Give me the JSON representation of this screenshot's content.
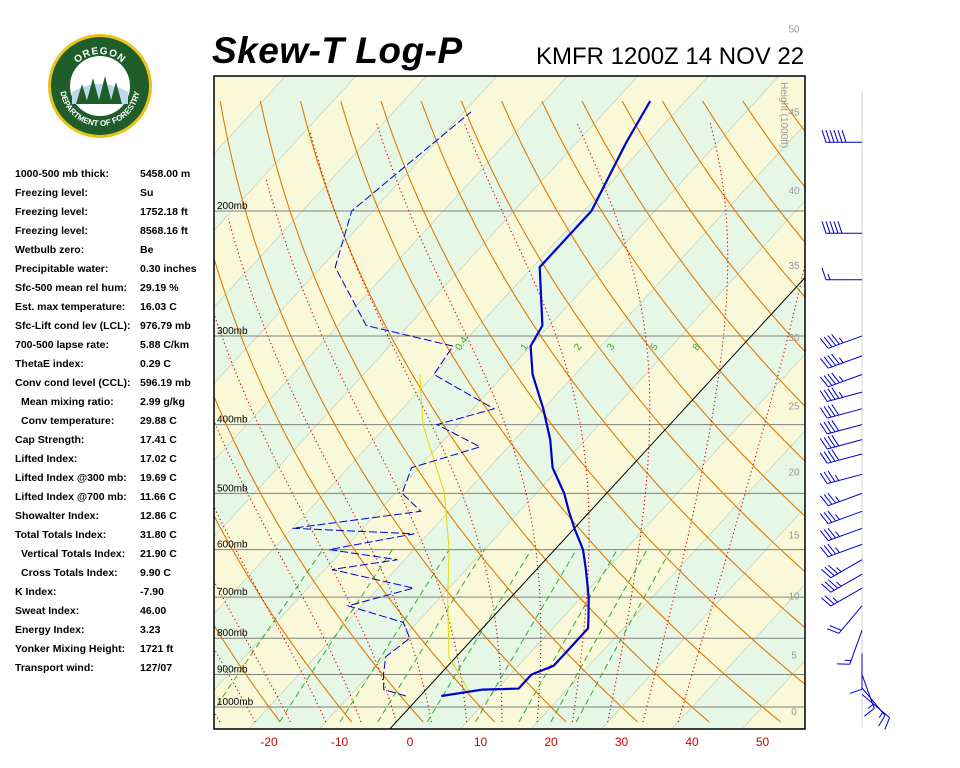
{
  "header": {
    "title": "Skew-T Log-P",
    "station_time": "KMFR 1200Z 14 NOV 22"
  },
  "logo": {
    "top_text": "OREGON",
    "bottom_text": "DEPARTMENT OF FORESTRY"
  },
  "stats": [
    {
      "label": "1000-500 mb thick:",
      "value": "5458.00 m"
    },
    {
      "label": "Freezing level:",
      "value": "Su"
    },
    {
      "label": "Freezing level:",
      "value": "1752.18 ft"
    },
    {
      "label": "Freezing level:",
      "value": "8568.16 ft"
    },
    {
      "label": "Wetbulb zero:",
      "value": "Be"
    },
    {
      "label": "Precipitable water:",
      "value": "0.30 inches"
    },
    {
      "label": "Sfc-500 mean rel hum:",
      "value": "29.19 %"
    },
    {
      "label": "Est. max temperature:",
      "value": "16.03 C"
    },
    {
      "label": "Sfc-Lift cond lev (LCL):",
      "value": "976.79 mb"
    },
    {
      "label": "700-500 lapse rate:",
      "value": "5.88 C/km"
    },
    {
      "label": "ThetaE index:",
      "value": "0.29 C"
    },
    {
      "label": "Conv cond level (CCL):",
      "value": "596.19 mb"
    },
    {
      "label": "Mean mixing ratio:",
      "value": "2.99 g/kg",
      "indent": true
    },
    {
      "label": "Conv temperature:",
      "value": "29.88 C",
      "indent": true
    },
    {
      "label": "Cap Strength:",
      "value": "17.41 C"
    },
    {
      "label": "Lifted Index:",
      "value": "17.02 C"
    },
    {
      "label": "Lifted Index @300 mb:",
      "value": "19.69 C"
    },
    {
      "label": "Lifted Index @700 mb:",
      "value": "11.66 C"
    },
    {
      "label": "Showalter Index:",
      "value": "12.86 C"
    },
    {
      "label": "Total Totals Index:",
      "value": "31.80 C"
    },
    {
      "label": "Vertical Totals Index:",
      "value": "21.90 C",
      "indent": true
    },
    {
      "label": "Cross Totals Index:",
      "value": "9.90 C",
      "indent": true
    },
    {
      "label": "K Index:",
      "value": "-7.90"
    },
    {
      "label": "Sweat Index:",
      "value": "46.00"
    },
    {
      "label": "Energy Index:",
      "value": "3.23"
    },
    {
      "label": "Yonker Mixing Height:",
      "value": "1721 ft"
    },
    {
      "label": "Transport wind:",
      "value": "127/07"
    }
  ],
  "colors": {
    "temperature": "#0000cc",
    "dewpoint": "#0000cc",
    "parcel": "#dddd00",
    "dry_adiabat": "#e07800",
    "moist_adiabat": "#cc0000",
    "mixing_ratio": "#33aa33",
    "isobar": "#808080",
    "isotherm_fill_a": "#e6f7e6",
    "isotherm_fill_b": "#f9f9da",
    "x_tick_text": "#cc0000",
    "height_text": "#999999"
  },
  "chart_data": {
    "type": "line",
    "title": "Skew-T Log-P",
    "xlabel": "",
    "ylabel": "",
    "x_ticks": [
      -20,
      -10,
      0,
      10,
      20,
      30,
      40,
      50
    ],
    "x_tick_labels": [
      "-20",
      "-10",
      "0",
      "10",
      "20",
      "30",
      "40",
      "50"
    ],
    "pressure_levels": [
      1000,
      900,
      800,
      700,
      600,
      500,
      400,
      300,
      200
    ],
    "pressure_labels": [
      "1000mb",
      "900mb",
      "800mb",
      "700mb",
      "600mb",
      "500mb",
      "400mb",
      "300mb",
      "200mb"
    ],
    "height_axis_title": "Height (1000ft)",
    "height_ticks": [
      0,
      5,
      10,
      15,
      20,
      25,
      30,
      35,
      40,
      45,
      50
    ],
    "height_tick_labels": [
      "0",
      "5",
      "10",
      "15",
      "20",
      "25",
      "30",
      "35",
      "40",
      "45",
      "50"
    ],
    "mixing_ratio_labels": [
      "0.4",
      "1",
      "2",
      "3",
      "5",
      "8"
    ],
    "temperature_profile": [
      {
        "p": 965,
        "t": 3
      },
      {
        "p": 945,
        "t": 8
      },
      {
        "p": 942,
        "t": 13
      },
      {
        "p": 920,
        "t": 13
      },
      {
        "p": 900,
        "t": 13
      },
      {
        "p": 875,
        "t": 15
      },
      {
        "p": 840,
        "t": 15
      },
      {
        "p": 800,
        "t": 15
      },
      {
        "p": 775,
        "t": 15
      },
      {
        "p": 755,
        "t": 14
      },
      {
        "p": 700,
        "t": 11
      },
      {
        "p": 640,
        "t": 7
      },
      {
        "p": 600,
        "t": 4
      },
      {
        "p": 560,
        "t": 0
      },
      {
        "p": 530,
        "t": -3
      },
      {
        "p": 500,
        "t": -6
      },
      {
        "p": 460,
        "t": -11
      },
      {
        "p": 420,
        "t": -15
      },
      {
        "p": 380,
        "t": -20
      },
      {
        "p": 340,
        "t": -26
      },
      {
        "p": 310,
        "t": -30
      },
      {
        "p": 290,
        "t": -31
      },
      {
        "p": 240,
        "t": -39
      },
      {
        "p": 200,
        "t": -39
      },
      {
        "p": 160,
        "t": -43
      },
      {
        "p": 140,
        "t": -45
      }
    ],
    "dewpoint_profile": [
      {
        "p": 965,
        "t": -2
      },
      {
        "p": 945,
        "t": -6
      },
      {
        "p": 900,
        "t": -8
      },
      {
        "p": 850,
        "t": -10
      },
      {
        "p": 800,
        "t": -9
      },
      {
        "p": 760,
        "t": -12
      },
      {
        "p": 720,
        "t": -22
      },
      {
        "p": 680,
        "t": -15
      },
      {
        "p": 640,
        "t": -29
      },
      {
        "p": 620,
        "t": -21
      },
      {
        "p": 600,
        "t": -32
      },
      {
        "p": 570,
        "t": -22
      },
      {
        "p": 560,
        "t": -40
      },
      {
        "p": 530,
        "t": -24
      },
      {
        "p": 500,
        "t": -29
      },
      {
        "p": 460,
        "t": -31
      },
      {
        "p": 430,
        "t": -24
      },
      {
        "p": 400,
        "t": -33
      },
      {
        "p": 380,
        "t": -27
      },
      {
        "p": 340,
        "t": -40
      },
      {
        "p": 310,
        "t": -41
      },
      {
        "p": 290,
        "t": -56
      },
      {
        "p": 240,
        "t": -68
      },
      {
        "p": 200,
        "t": -73
      },
      {
        "p": 170,
        "t": -71
      },
      {
        "p": 145,
        "t": -69
      }
    ],
    "parcel_profile": [
      {
        "p": 960,
        "t": 7
      },
      {
        "p": 850,
        "t": -1
      },
      {
        "p": 700,
        "t": -9
      },
      {
        "p": 600,
        "t": -15
      },
      {
        "p": 500,
        "t": -23
      },
      {
        "p": 400,
        "t": -35
      },
      {
        "p": 340,
        "t": -42
      }
    ],
    "wind_barbs": [
      {
        "p": 160,
        "dir": 270,
        "speed": 60
      },
      {
        "p": 215,
        "dir": 270,
        "speed": 50
      },
      {
        "p": 250,
        "dir": 270,
        "speed": 15
      },
      {
        "p": 300,
        "dir": 250,
        "speed": 45
      },
      {
        "p": 320,
        "dir": 250,
        "speed": 45
      },
      {
        "p": 340,
        "dir": 250,
        "speed": 45
      },
      {
        "p": 360,
        "dir": 255,
        "speed": 45
      },
      {
        "p": 380,
        "dir": 255,
        "speed": 40
      },
      {
        "p": 400,
        "dir": 255,
        "speed": 40
      },
      {
        "p": 420,
        "dir": 255,
        "speed": 40
      },
      {
        "p": 440,
        "dir": 255,
        "speed": 40
      },
      {
        "p": 470,
        "dir": 255,
        "speed": 35
      },
      {
        "p": 500,
        "dir": 250,
        "speed": 35
      },
      {
        "p": 530,
        "dir": 250,
        "speed": 35
      },
      {
        "p": 560,
        "dir": 250,
        "speed": 35
      },
      {
        "p": 590,
        "dir": 250,
        "speed": 35
      },
      {
        "p": 620,
        "dir": 240,
        "speed": 35
      },
      {
        "p": 650,
        "dir": 240,
        "speed": 35
      },
      {
        "p": 680,
        "dir": 240,
        "speed": 25
      },
      {
        "p": 720,
        "dir": 220,
        "speed": 20
      },
      {
        "p": 780,
        "dir": 200,
        "speed": 15
      },
      {
        "p": 840,
        "dir": 180,
        "speed": 10
      },
      {
        "p": 900,
        "dir": 160,
        "speed": 15
      },
      {
        "p": 940,
        "dir": 140,
        "speed": 15
      },
      {
        "p": 960,
        "dir": 130,
        "speed": 10
      }
    ]
  }
}
